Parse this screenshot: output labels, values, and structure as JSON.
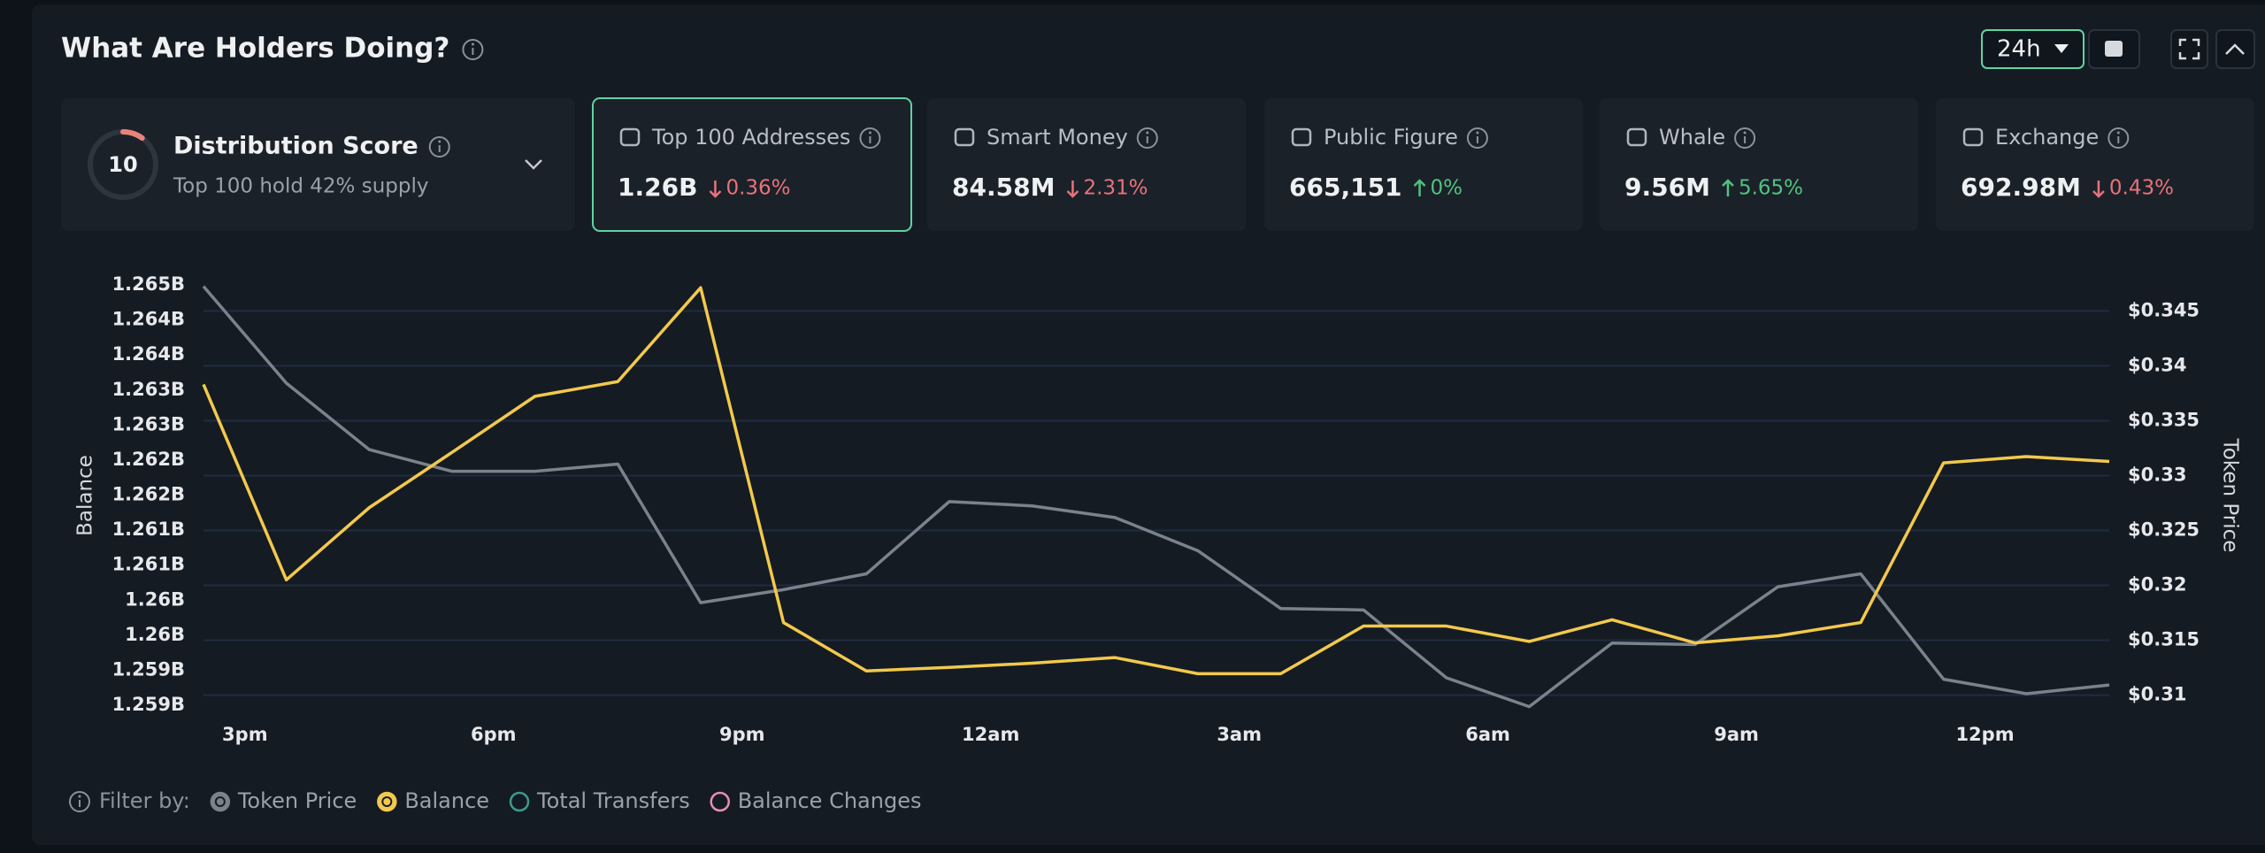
{
  "header": {
    "title": "What Are Holders Doing?",
    "period": "24h"
  },
  "distribution": {
    "score": 10,
    "title": "Distribution Score",
    "subtitle": "Top 100 hold 42% supply"
  },
  "cards": [
    {
      "label": "Top 100 Addresses",
      "value": "1.26B",
      "change": "0.36%",
      "direction": "down",
      "selected": true
    },
    {
      "label": "Smart Money",
      "value": "84.58M",
      "change": "2.31%",
      "direction": "down",
      "selected": false
    },
    {
      "label": "Public Figure",
      "value": "665,151",
      "change": "0%",
      "direction": "up",
      "selected": false
    },
    {
      "label": "Whale",
      "value": "9.56M",
      "change": "5.65%",
      "direction": "up",
      "selected": false
    },
    {
      "label": "Exchange",
      "value": "692.98M",
      "change": "0.43%",
      "direction": "down",
      "selected": false
    }
  ],
  "chart_data": {
    "type": "line",
    "y_label": "Balance",
    "y2_label": "Token Price",
    "x": [
      14.5,
      15.5,
      16.5,
      17.5,
      18.5,
      19.5,
      20.5,
      21.5,
      22.5,
      23.5,
      24.5,
      25.5,
      26.5,
      27.5,
      28.5,
      29.5,
      30.5,
      31.5,
      32.5,
      33.5,
      34.5,
      35.5,
      36.5,
      37.5
    ],
    "xlim": [
      14.5,
      37.5
    ],
    "xticks": [
      {
        "value": 15,
        "label": "3pm"
      },
      {
        "value": 18,
        "label": "6pm"
      },
      {
        "value": 21,
        "label": "9pm"
      },
      {
        "value": 24,
        "label": "12am"
      },
      {
        "value": 27,
        "label": "3am"
      },
      {
        "value": 30,
        "label": "6am"
      },
      {
        "value": 33,
        "label": "9am"
      },
      {
        "value": 36,
        "label": "12pm"
      }
    ],
    "ylim": [
      1.259,
      1.265
    ],
    "yticks": [
      {
        "value": 1.265,
        "label": "1.265B"
      },
      {
        "value": 1.2645,
        "label": "1.264B"
      },
      {
        "value": 1.264,
        "label": "1.264B"
      },
      {
        "value": 1.2635,
        "label": "1.263B"
      },
      {
        "value": 1.263,
        "label": "1.263B"
      },
      {
        "value": 1.2625,
        "label": "1.262B"
      },
      {
        "value": 1.262,
        "label": "1.262B"
      },
      {
        "value": 1.2615,
        "label": "1.261B"
      },
      {
        "value": 1.261,
        "label": "1.261B"
      },
      {
        "value": 1.2605,
        "label": "1.26B"
      },
      {
        "value": 1.26,
        "label": "1.26B"
      },
      {
        "value": 1.2595,
        "label": "1.259B"
      },
      {
        "value": 1.259,
        "label": "1.259B"
      }
    ],
    "y2lim": [
      0.30908,
      0.34737
    ],
    "y2ticks": [
      {
        "value": 0.345,
        "label": "$0.345"
      },
      {
        "value": 0.34,
        "label": "$0.34"
      },
      {
        "value": 0.335,
        "label": "$0.335"
      },
      {
        "value": 0.33,
        "label": "$0.33"
      },
      {
        "value": 0.325,
        "label": "$0.325"
      },
      {
        "value": 0.32,
        "label": "$0.32"
      },
      {
        "value": 0.315,
        "label": "$0.315"
      },
      {
        "value": 0.31,
        "label": "$0.31"
      }
    ],
    "grid": "y2",
    "filter_label": "Filter by:",
    "series": [
      {
        "name": "Token Price",
        "color": "#7b828c",
        "axis": "y2",
        "values": [
          0.34724,
          0.33842,
          0.33237,
          0.33039,
          0.33039,
          0.33105,
          0.31842,
          0.31961,
          0.32105,
          0.32763,
          0.32724,
          0.32618,
          0.32316,
          0.31789,
          0.31776,
          0.31158,
          0.30895,
          0.31474,
          0.31461,
          0.31987,
          0.32105,
          0.31145,
          0.31013,
          0.31092
        ]
      },
      {
        "name": "Balance",
        "color": "#f2c94c",
        "axis": "y",
        "values": [
          1.26358,
          1.26079,
          1.26182,
          1.26261,
          1.26341,
          1.26362,
          1.26496,
          1.26018,
          1.25949,
          1.25954,
          1.2596,
          1.25968,
          1.25945,
          1.25945,
          1.26013,
          1.26013,
          1.25991,
          1.26022,
          1.25989,
          1.25999,
          1.26018,
          1.26246,
          1.26255,
          1.26248
        ]
      }
    ],
    "extra_legend": [
      {
        "name": "Total Transfers",
        "color": "#3d9a8c"
      },
      {
        "name": "Balance Changes",
        "color": "#e58fb3"
      }
    ]
  }
}
